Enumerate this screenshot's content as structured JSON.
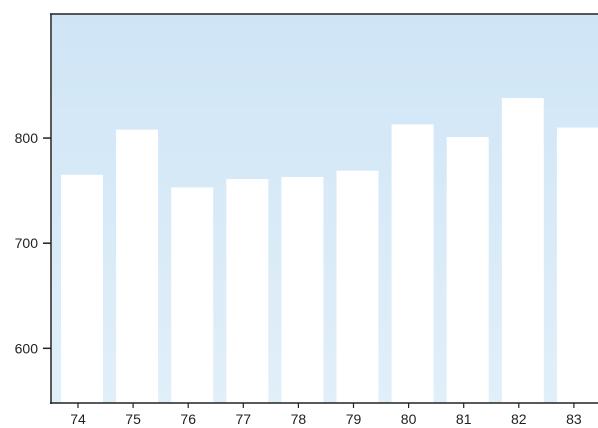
{
  "chart_data": {
    "type": "bar",
    "categories": [
      "74",
      "75",
      "76",
      "77",
      "78",
      "79",
      "80",
      "81",
      "82",
      "83"
    ],
    "values": [
      765,
      808,
      753,
      761,
      763,
      769,
      813,
      801,
      838,
      810
    ],
    "y_ticks": [
      600,
      700,
      800
    ],
    "ylim": [
      548,
      918
    ],
    "grid": false,
    "colors": {
      "background_top": "#cfe5f6",
      "background_bottom": "#e1eff9",
      "bar": "#ffffff",
      "axis": "#222222"
    }
  }
}
